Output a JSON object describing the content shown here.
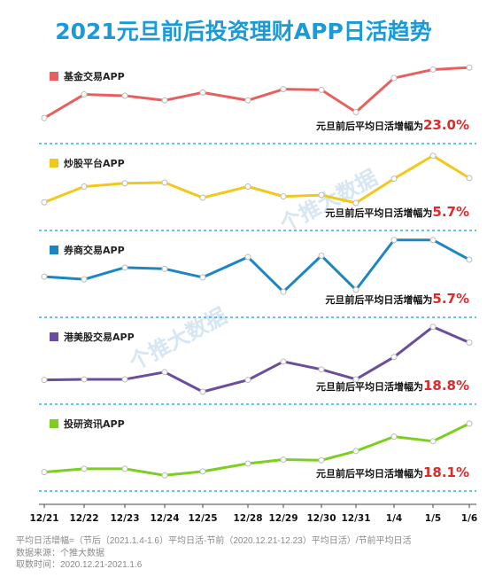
{
  "chart_data": {
    "type": "line",
    "title": "2021元旦前后投资理财APP日活趋势",
    "categories": [
      "12/21",
      "12/22",
      "12/23",
      "12/24",
      "12/25",
      "12/28",
      "12/29",
      "12/30",
      "12/31",
      "1/4",
      "1/5",
      "1/6"
    ],
    "growth_prefix": "元旦前后平均日活增幅为",
    "series": [
      {
        "name": "基金交易APP",
        "color": "#e8605e",
        "growth": "23.0%",
        "values": [
          0.2,
          0.56,
          0.54,
          0.47,
          0.59,
          0.47,
          0.64,
          0.63,
          0.29,
          0.81,
          0.94,
          0.97
        ]
      },
      {
        "name": "炒股平台APP",
        "color": "#f2c81a",
        "growth": "5.7%",
        "values": [
          0.24,
          0.48,
          0.53,
          0.54,
          0.31,
          0.48,
          0.33,
          0.35,
          0.23,
          0.6,
          0.95,
          0.61
        ]
      },
      {
        "name": "券商交易APP",
        "color": "#1a87c4",
        "growth": "5.7%",
        "values": [
          0.43,
          0.39,
          0.57,
          0.55,
          0.42,
          0.73,
          0.2,
          0.75,
          0.23,
          0.99,
          0.99,
          0.69
        ]
      },
      {
        "name": "港美股交易APP",
        "color": "#6b4d9c",
        "growth": "18.8%",
        "values": [
          0.18,
          0.19,
          0.19,
          0.3,
          0.0,
          0.18,
          0.46,
          0.34,
          0.19,
          0.53,
          0.99,
          0.75
        ]
      },
      {
        "name": "投研资讯APP",
        "color": "#7ccf1f",
        "growth": "18.1%",
        "values": [
          0.1,
          0.15,
          0.15,
          0.05,
          0.11,
          0.23,
          0.29,
          0.28,
          0.42,
          0.64,
          0.57,
          0.84
        ]
      }
    ]
  },
  "watermarks": [
    "个推大数据",
    "个推大数据"
  ],
  "footnotes": [
    "平均日活增幅=（节后（2021.1.4-1.6）平均日活-节前（2020.12.21-12.23）平均日活）/节前平均日活",
    "数据来源：个推大数据",
    "取数时间：2020.12.21-2021.1.6"
  ]
}
